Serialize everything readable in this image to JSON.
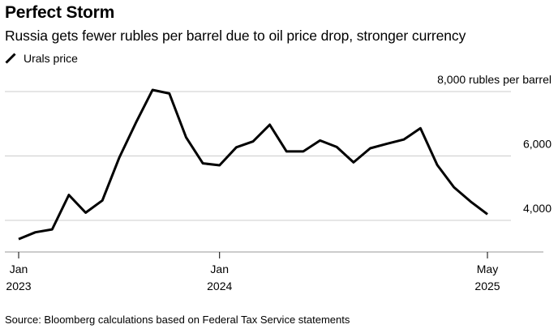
{
  "title": "Perfect Storm",
  "subtitle": "Russia gets fewer rubles per barrel due to oil price drop, stronger currency",
  "legend": {
    "label": "Urals price",
    "color": "#000000"
  },
  "source": "Source: Bloomberg calculations based on Federal Tax Service statements",
  "colors": {
    "line": "#000000",
    "grid": "#cccccc",
    "axis": "#999999"
  },
  "chart_data": {
    "type": "line",
    "title": "Perfect Storm",
    "subtitle": "Russia gets fewer rubles per barrel due to oil price drop, stronger currency",
    "xlabel": "",
    "ylabel": "rubles per barrel",
    "ylim": [
      3000,
      8000
    ],
    "yticks": [
      {
        "value": 4000,
        "label": "4,000"
      },
      {
        "value": 6000,
        "label": "6,000"
      },
      {
        "value": 8000,
        "label": "8,000 rubles per barrel"
      }
    ],
    "x_range": [
      0,
      28.5
    ],
    "xticks": [
      {
        "index": 0,
        "line1": "Jan",
        "line2": "2023"
      },
      {
        "index": 12,
        "line1": "Jan",
        "line2": "2024"
      },
      {
        "index": 28,
        "line1": "May",
        "line2": "2025"
      }
    ],
    "series": [
      {
        "name": "Urals price",
        "x": [
          "Jan 2023",
          "Feb 2023",
          "Mar 2023",
          "Apr 2023",
          "May 2023",
          "Jun 2023",
          "Jul 2023",
          "Aug 2023",
          "Sep 2023",
          "Oct 2023",
          "Nov 2023",
          "Dec 2023",
          "Jan 2024",
          "Feb 2024",
          "Mar 2024",
          "Apr 2024",
          "May 2024",
          "Jun 2024",
          "Jul 2024",
          "Aug 2024",
          "Sep 2024",
          "Oct 2024",
          "Nov 2024",
          "Dec 2024",
          "Jan 2025",
          "Feb 2025",
          "Mar 2025",
          "Apr 2025",
          "May 2025"
        ],
        "values": [
          3420,
          3630,
          3720,
          4790,
          4240,
          4620,
          5940,
          7030,
          8050,
          7940,
          6580,
          5770,
          5710,
          6270,
          6450,
          6970,
          6140,
          6140,
          6480,
          6280,
          5800,
          6240,
          6380,
          6510,
          6860,
          5720,
          5030,
          4580,
          4190
        ]
      }
    ]
  }
}
